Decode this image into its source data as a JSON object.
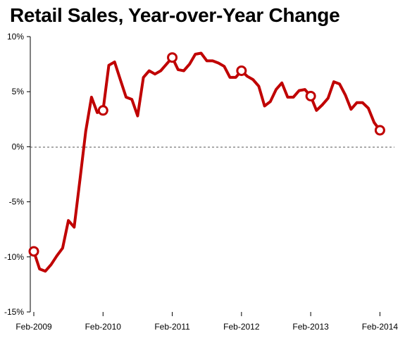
{
  "chart_data": {
    "type": "line",
    "title": "Retail Sales, Year-over-Year Change",
    "xlabel": "",
    "ylabel": "",
    "ylim": [
      -15,
      10
    ],
    "y_ticks": [
      10,
      5,
      0,
      -5,
      -10,
      -15
    ],
    "y_tick_labels": [
      "10%",
      "5%",
      "0%",
      "-5%",
      "-10%",
      "-15%"
    ],
    "x_ticks": [
      "Feb-2009",
      "Feb-2010",
      "Feb-2011",
      "Feb-2012",
      "Feb-2013",
      "Feb-2014"
    ],
    "zero_line": "dashed",
    "grid": false,
    "legend": "none",
    "colors": {
      "line": "#c00000",
      "axis": "#000000"
    },
    "series": [
      {
        "x": [
          "2009-02",
          "2009-03",
          "2009-04",
          "2009-05",
          "2009-06",
          "2009-07",
          "2009-08",
          "2009-09",
          "2009-10",
          "2009-11",
          "2009-12",
          "2010-01",
          "2010-02",
          "2010-03",
          "2010-04",
          "2010-05",
          "2010-06",
          "2010-07",
          "2010-08",
          "2010-09",
          "2010-10",
          "2010-11",
          "2010-12",
          "2011-01",
          "2011-02",
          "2011-03",
          "2011-04",
          "2011-05",
          "2011-06",
          "2011-07",
          "2011-08",
          "2011-09",
          "2011-10",
          "2011-11",
          "2011-12",
          "2012-01",
          "2012-02",
          "2012-03",
          "2012-04",
          "2012-05",
          "2012-06",
          "2012-07",
          "2012-08",
          "2012-09",
          "2012-10",
          "2012-11",
          "2012-12",
          "2013-01",
          "2013-02",
          "2013-03",
          "2013-04",
          "2013-05",
          "2013-06",
          "2013-07",
          "2013-08",
          "2013-09",
          "2013-10",
          "2013-11",
          "2013-12",
          "2014-01",
          "2014-02"
        ],
        "values": [
          -9.5,
          -11.1,
          -11.3,
          -10.7,
          -9.9,
          -9.2,
          -6.7,
          -7.3,
          -3.0,
          1.4,
          4.5,
          3.1,
          3.3,
          7.4,
          7.7,
          6.1,
          4.5,
          4.3,
          2.8,
          6.3,
          6.9,
          6.6,
          6.9,
          7.5,
          8.1,
          7.0,
          6.9,
          7.5,
          8.4,
          8.5,
          7.8,
          7.8,
          7.6,
          7.3,
          6.3,
          6.3,
          6.9,
          6.4,
          6.1,
          5.5,
          3.7,
          4.1,
          5.2,
          5.8,
          4.5,
          4.5,
          5.1,
          5.2,
          4.6,
          3.3,
          3.8,
          4.4,
          5.9,
          5.7,
          4.7,
          3.4,
          4.0,
          4.0,
          3.5,
          2.2,
          1.5
        ],
        "markers_at": [
          "2009-02",
          "2010-02",
          "2011-02",
          "2012-02",
          "2013-02",
          "2014-02"
        ]
      }
    ]
  }
}
